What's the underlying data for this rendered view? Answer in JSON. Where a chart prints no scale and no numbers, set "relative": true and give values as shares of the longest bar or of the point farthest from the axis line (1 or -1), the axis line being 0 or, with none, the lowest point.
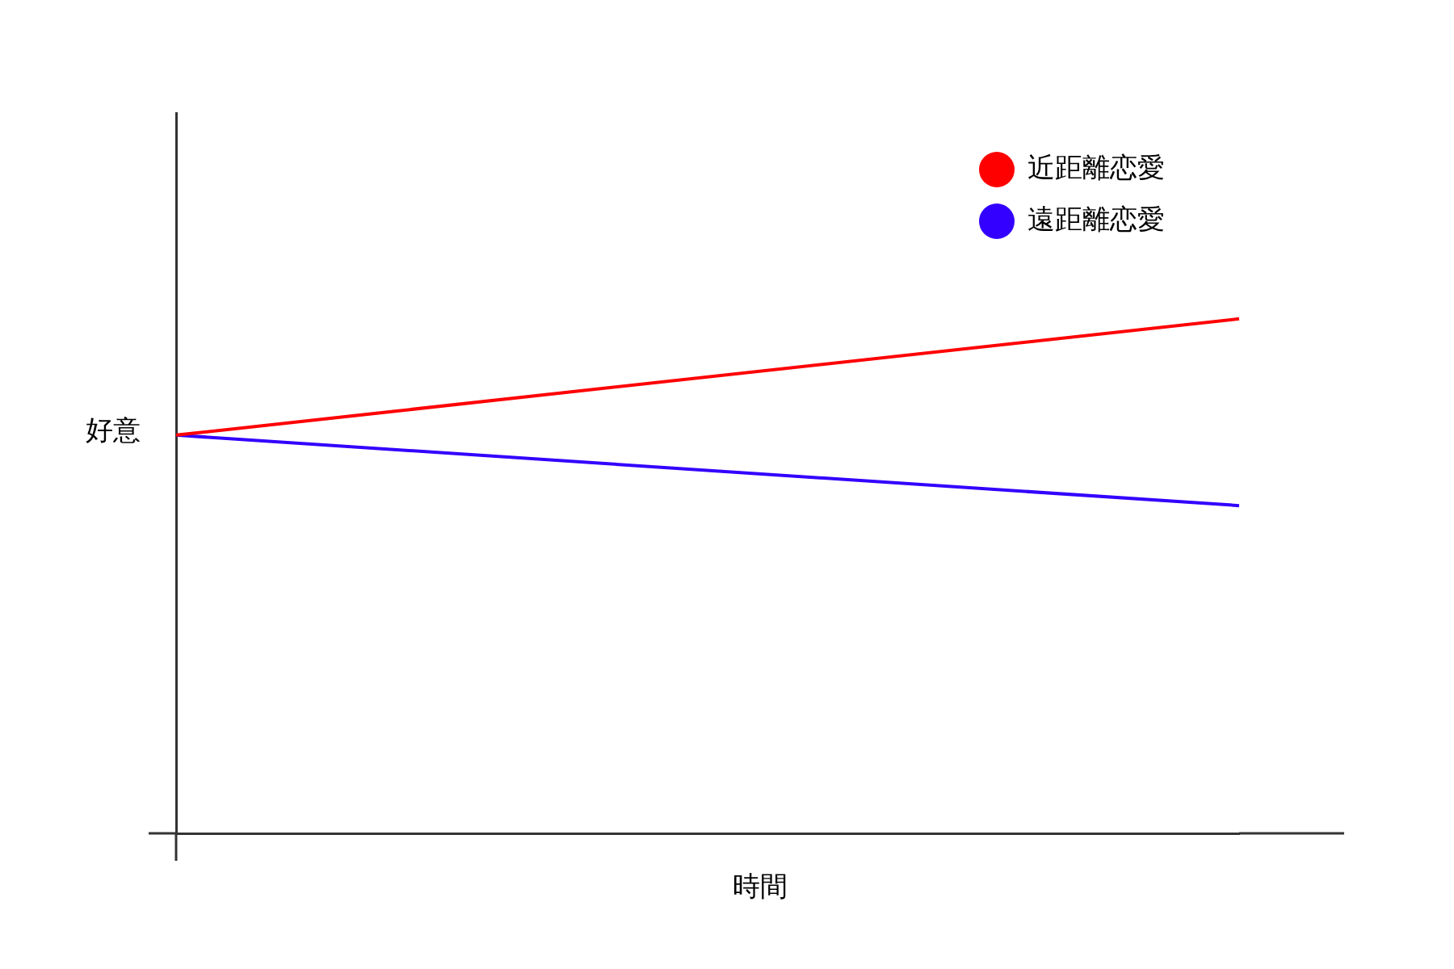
{
  "chart_data": {
    "type": "line",
    "relative": true,
    "xlabel": "時間",
    "ylabel": "好意",
    "categories": [
      null,
      null
    ],
    "series": [
      {
        "name": "近距離恋愛",
        "color": "#ff0000",
        "values": [
          0.774,
          1
        ]
      },
      {
        "name": "遠距離恋愛",
        "color": "#3300ff",
        "values": [
          0.774,
          0.637
        ]
      }
    ],
    "legend": "top right",
    "marker": "none",
    "line_style": "solid",
    "grid": false
  }
}
